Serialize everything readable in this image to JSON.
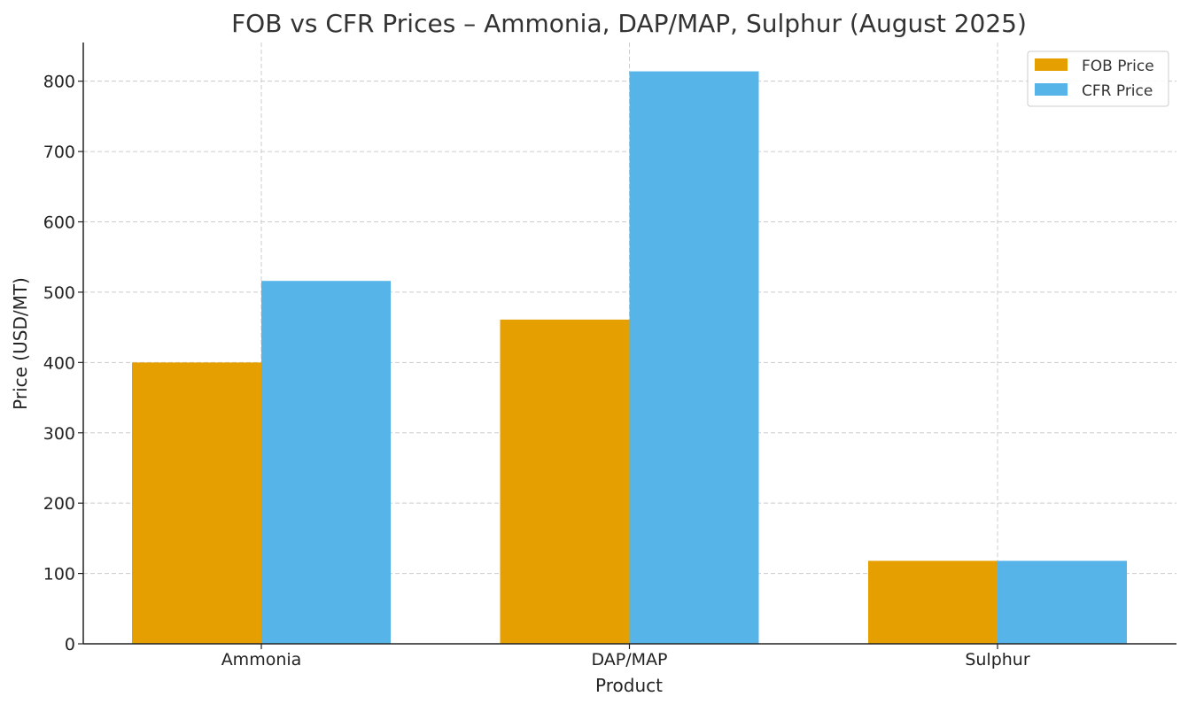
{
  "chart_data": {
    "type": "bar",
    "title": "FOB vs CFR Prices – Ammonia, DAP/MAP, Sulphur (August 2025)",
    "xlabel": "Product",
    "ylabel": "Price (USD/MT)",
    "categories": [
      "Ammonia",
      "DAP/MAP",
      "Sulphur"
    ],
    "series": [
      {
        "name": "FOB Price",
        "values": [
          400,
          461,
          118
        ],
        "color": "#E69F00"
      },
      {
        "name": "CFR Price",
        "values": [
          516,
          814,
          118
        ],
        "color": "#56B4E9"
      }
    ],
    "ylim": [
      0,
      855
    ],
    "yticks": [
      0,
      100,
      200,
      300,
      400,
      500,
      600,
      700,
      800
    ],
    "grid": true,
    "legend_position": "top-right"
  }
}
